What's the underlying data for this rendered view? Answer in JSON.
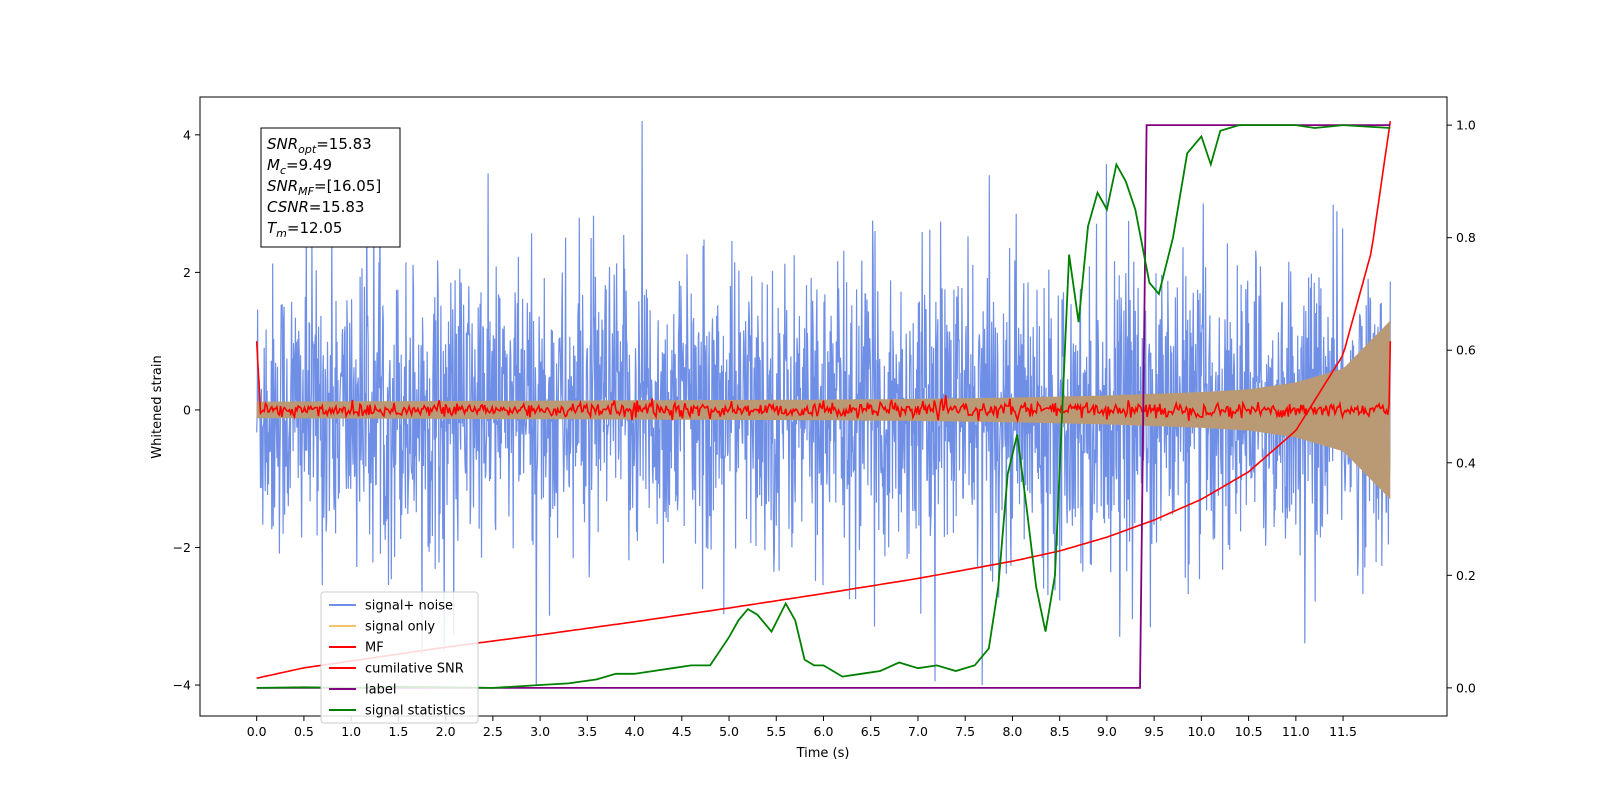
{
  "chart_data": {
    "type": "line",
    "title": "",
    "xlabel": "Time (s)",
    "ylabel": "Whitened strain",
    "xlim": [
      -0.6,
      12.6
    ],
    "ylim": [
      -4.45,
      4.55
    ],
    "y2lim": [
      -0.05,
      1.05
    ],
    "x_ticks": [
      0.0,
      0.5,
      1.0,
      1.5,
      2.0,
      2.5,
      3.0,
      3.5,
      4.0,
      4.5,
      5.0,
      5.5,
      6.0,
      6.5,
      7.0,
      7.5,
      8.0,
      8.5,
      9.0,
      9.5,
      10.0,
      10.5,
      11.0,
      11.5
    ],
    "x_tick_labels": [
      "0.0",
      "0.5",
      "1.0",
      "1.5",
      "2.0",
      "2.5",
      "3.0",
      "3.5",
      "4.0",
      "4.5",
      "5.0",
      "5.5",
      "6.0",
      "6.5",
      "7.0",
      "7.5",
      "8.0",
      "8.5",
      "9.0",
      "9.5",
      "10.0",
      "10.5",
      "11.0",
      "11.5"
    ],
    "y_ticks": [
      4,
      2,
      0,
      -2,
      -4
    ],
    "y_tick_labels": [
      "4",
      "2",
      "0",
      "−2",
      "−4"
    ],
    "y2_ticks": [
      1.0,
      0.8,
      0.6,
      0.4,
      0.2,
      0.0
    ],
    "y2_tick_labels": [
      "1.0",
      "0.8",
      "0.6",
      "0.4",
      "0.2",
      "0.0"
    ],
    "grid": false,
    "legend": "lower-left",
    "series": [
      {
        "name": "signal+ noise",
        "color": "#6f8fe6",
        "axis": "left",
        "kind": "noise",
        "x_range": [
          0.0,
          12.0
        ],
        "envelope_typical": 2.5,
        "peak_max": 4.2,
        "peak_min": -4.0
      },
      {
        "name": "signal only",
        "color": "#f5c46a",
        "axis": "left",
        "kind": "chirp",
        "x": [
          0.0,
          2.0,
          4.0,
          6.0,
          7.0,
          8.0,
          9.0,
          10.0,
          10.5,
          11.0,
          11.5,
          12.0
        ],
        "amplitude": [
          0.12,
          0.13,
          0.14,
          0.15,
          0.16,
          0.18,
          0.21,
          0.26,
          0.3,
          0.4,
          0.6,
          1.3
        ]
      },
      {
        "name": "MF",
        "color": "#ff0000",
        "axis": "left",
        "kind": "noise-line",
        "x_range": [
          0.0,
          12.0
        ],
        "start_value": 1.0,
        "end_value": 1.0,
        "typical": 0.0,
        "spread": 0.08
      },
      {
        "name": "cumilative SNR",
        "color": "#ff0000",
        "axis": "left",
        "x": [
          0.0,
          0.5,
          1.0,
          2.0,
          3.0,
          4.0,
          5.0,
          6.0,
          7.0,
          8.0,
          8.5,
          9.0,
          9.5,
          10.0,
          10.5,
          11.0,
          11.5,
          11.8,
          12.0
        ],
        "values": [
          -3.9,
          -3.75,
          -3.65,
          -3.45,
          -3.27,
          -3.08,
          -2.88,
          -2.67,
          -2.45,
          -2.2,
          -2.05,
          -1.85,
          -1.6,
          -1.3,
          -0.9,
          -0.3,
          0.8,
          2.3,
          4.2
        ]
      },
      {
        "name": "label",
        "color": "#800080",
        "axis": "right",
        "x": [
          0.0,
          9.35,
          9.42,
          12.0
        ],
        "values": [
          0.0,
          0.0,
          1.0,
          1.0
        ]
      },
      {
        "name": "signal statistics",
        "color": "#008000",
        "axis": "right",
        "x": [
          0.0,
          0.5,
          1.0,
          1.5,
          2.0,
          2.5,
          3.0,
          3.3,
          3.6,
          3.8,
          4.0,
          4.2,
          4.4,
          4.6,
          4.8,
          5.0,
          5.1,
          5.2,
          5.3,
          5.45,
          5.6,
          5.7,
          5.8,
          5.9,
          6.0,
          6.2,
          6.4,
          6.6,
          6.8,
          7.0,
          7.2,
          7.4,
          7.6,
          7.75,
          7.85,
          7.95,
          8.05,
          8.15,
          8.25,
          8.35,
          8.45,
          8.6,
          8.7,
          8.8,
          8.9,
          9.0,
          9.1,
          9.2,
          9.3,
          9.45,
          9.55,
          9.7,
          9.85,
          10.0,
          10.1,
          10.2,
          10.4,
          10.6,
          10.8,
          11.0,
          11.2,
          11.5,
          12.0
        ],
        "values": [
          0.0,
          0.001,
          0.0,
          0.002,
          0.001,
          0.0,
          0.005,
          0.008,
          0.015,
          0.025,
          0.025,
          0.03,
          0.035,
          0.04,
          0.04,
          0.09,
          0.12,
          0.14,
          0.13,
          0.1,
          0.15,
          0.12,
          0.05,
          0.04,
          0.04,
          0.02,
          0.025,
          0.03,
          0.045,
          0.035,
          0.04,
          0.03,
          0.04,
          0.07,
          0.18,
          0.38,
          0.45,
          0.32,
          0.18,
          0.1,
          0.2,
          0.77,
          0.65,
          0.82,
          0.88,
          0.85,
          0.93,
          0.9,
          0.85,
          0.72,
          0.7,
          0.8,
          0.95,
          0.98,
          0.93,
          0.99,
          1.0,
          1.0,
          1.0,
          1.0,
          0.995,
          1.0,
          0.995
        ]
      }
    ]
  },
  "info_box": {
    "lines": [
      {
        "base": "SNR",
        "sub": "opt",
        "value": "=15.83"
      },
      {
        "base": "M",
        "sub": "c",
        "value": "=9.49"
      },
      {
        "base": "SNR",
        "sub": "MF",
        "value": "=[16.05]"
      },
      {
        "base": "CSNR",
        "sub": "",
        "value": "=15.83"
      },
      {
        "base": "T",
        "sub": "m",
        "value": "=12.05"
      }
    ]
  },
  "legend_items": [
    {
      "label": "signal+ noise",
      "color": "#6f8fe6"
    },
    {
      "label": "signal only",
      "color": "#f5c46a"
    },
    {
      "label": "MF",
      "color": "#ff0000"
    },
    {
      "label": "cumilative SNR",
      "color": "#ff0000"
    },
    {
      "label": "label",
      "color": "#800080"
    },
    {
      "label": "signal statistics",
      "color": "#008000"
    }
  ]
}
